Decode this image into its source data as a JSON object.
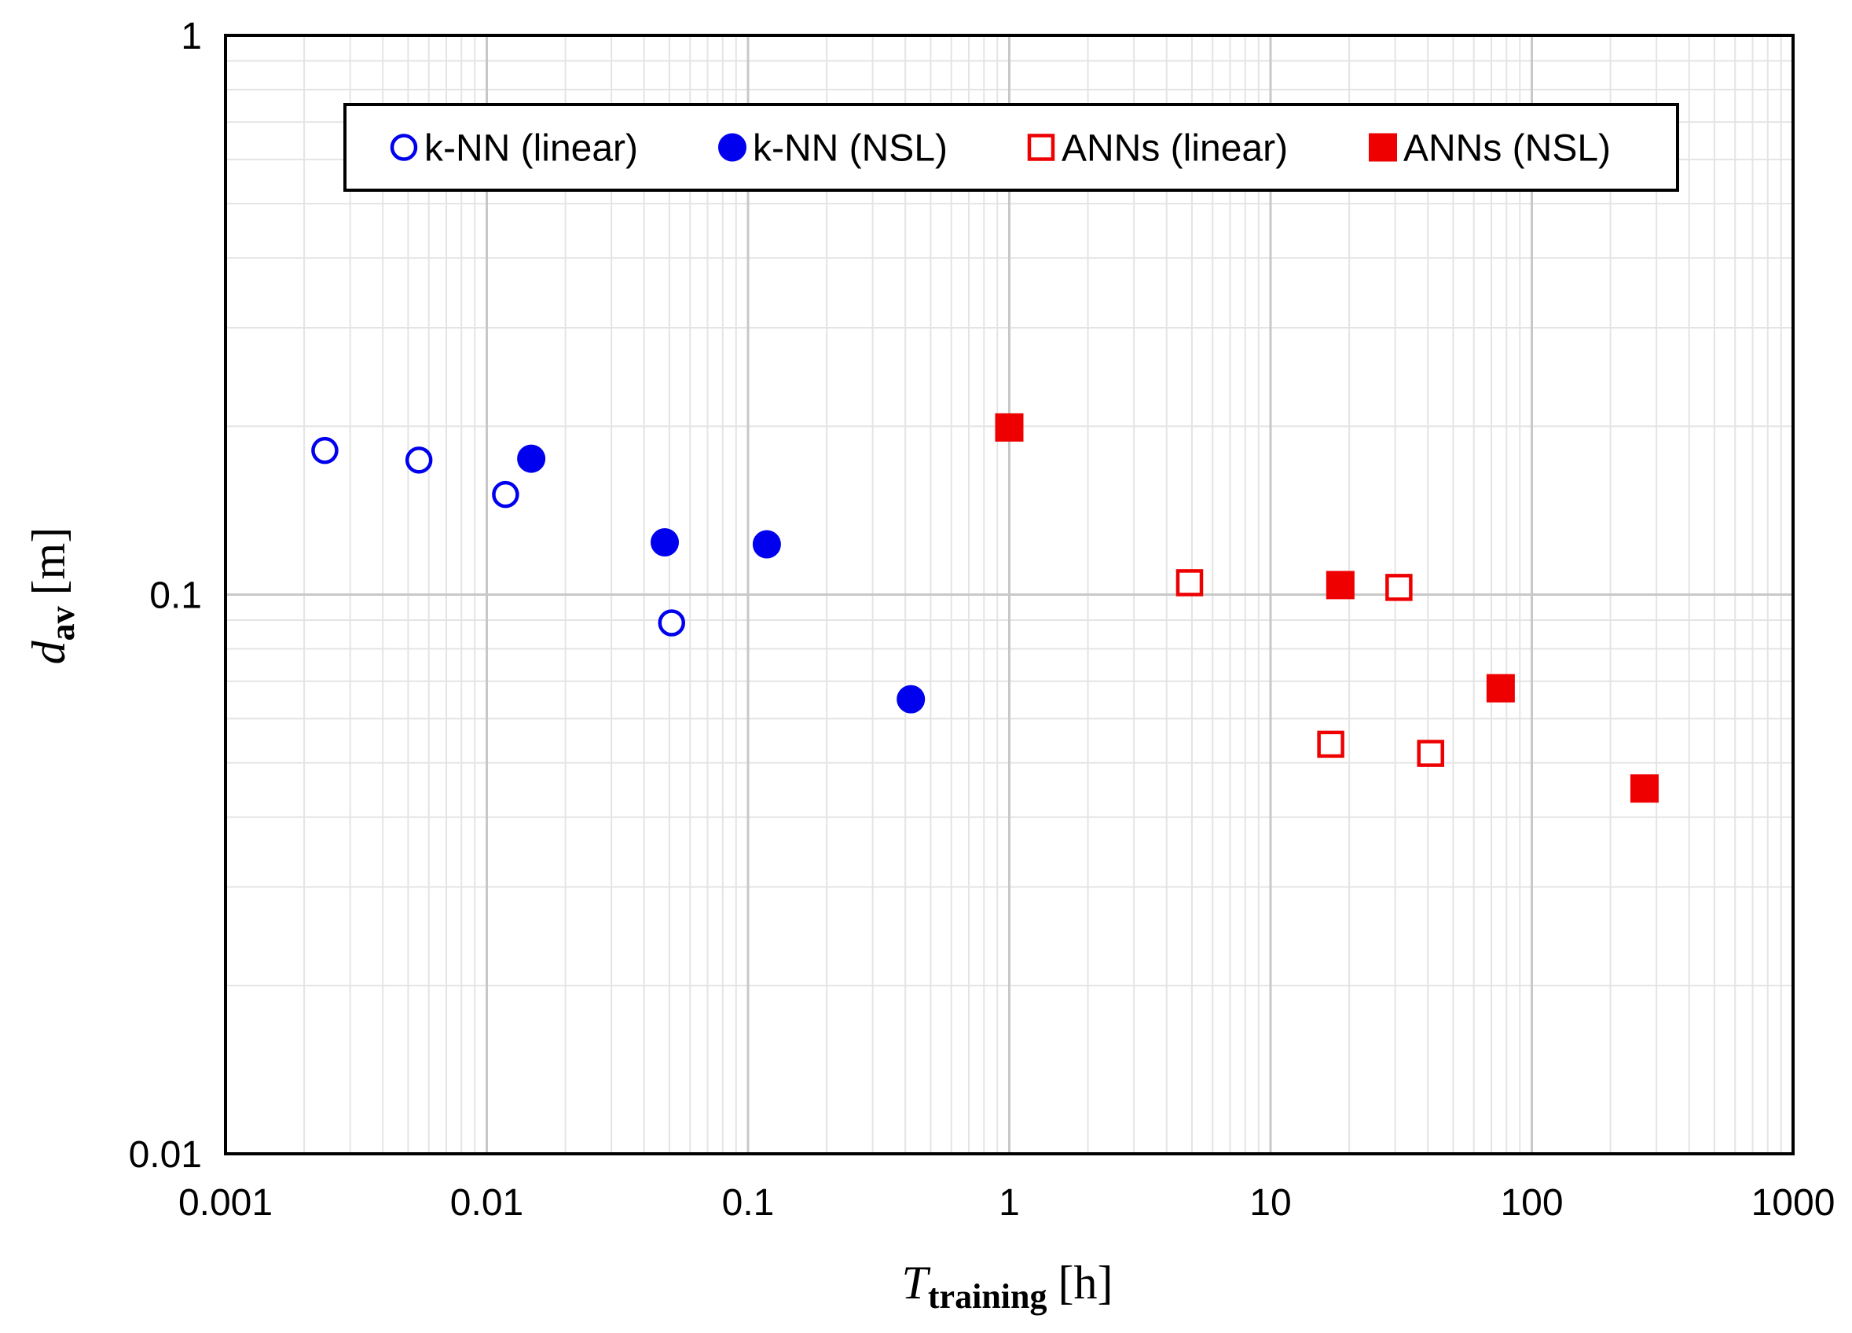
{
  "chart_data": {
    "type": "scatter",
    "title": "",
    "xlabel": {
      "main": "T",
      "sub": "training",
      "unit": "[h]"
    },
    "ylabel": {
      "main": "d",
      "sub": "av",
      "unit": "[m]"
    },
    "xscale": "log",
    "yscale": "log",
    "xlim": [
      0.001,
      1000
    ],
    "ylim": [
      0.01,
      1
    ],
    "grid": true,
    "legend_position": "top",
    "x_ticks": [
      {
        "value": 0.001,
        "label": "0.001"
      },
      {
        "value": 0.01,
        "label": "0.01"
      },
      {
        "value": 0.1,
        "label": "0.1"
      },
      {
        "value": 1,
        "label": "1"
      },
      {
        "value": 10,
        "label": "10"
      },
      {
        "value": 100,
        "label": "100"
      },
      {
        "value": 1000,
        "label": "1000"
      }
    ],
    "y_ticks": [
      {
        "value": 0.01,
        "label": "0.01"
      },
      {
        "value": 0.1,
        "label": "0.1"
      },
      {
        "value": 1,
        "label": "1"
      }
    ],
    "series": [
      {
        "name": "k-NN (linear)",
        "marker": "circle",
        "filled": false,
        "color": "#0000ee",
        "points": [
          [
            0.0024,
            0.181
          ],
          [
            0.0055,
            0.174
          ],
          [
            0.0118,
            0.151
          ],
          [
            0.051,
            0.089
          ]
        ]
      },
      {
        "name": "k-NN (NSL)",
        "marker": "circle",
        "filled": true,
        "color": "#0000ee",
        "points": [
          [
            0.0148,
            0.175
          ],
          [
            0.048,
            0.124
          ],
          [
            0.118,
            0.123
          ],
          [
            0.42,
            0.065
          ]
        ]
      },
      {
        "name": "ANNs (linear)",
        "marker": "square",
        "filled": false,
        "color": "#ee0000",
        "points": [
          [
            4.9,
            0.105
          ],
          [
            17,
            0.054
          ],
          [
            31,
            0.103
          ],
          [
            41,
            0.052
          ]
        ]
      },
      {
        "name": "ANNs (NSL)",
        "marker": "square",
        "filled": true,
        "color": "#ee0000",
        "points": [
          [
            1.0,
            0.199
          ],
          [
            18.5,
            0.104
          ],
          [
            76,
            0.068
          ],
          [
            270,
            0.045
          ]
        ]
      }
    ]
  }
}
